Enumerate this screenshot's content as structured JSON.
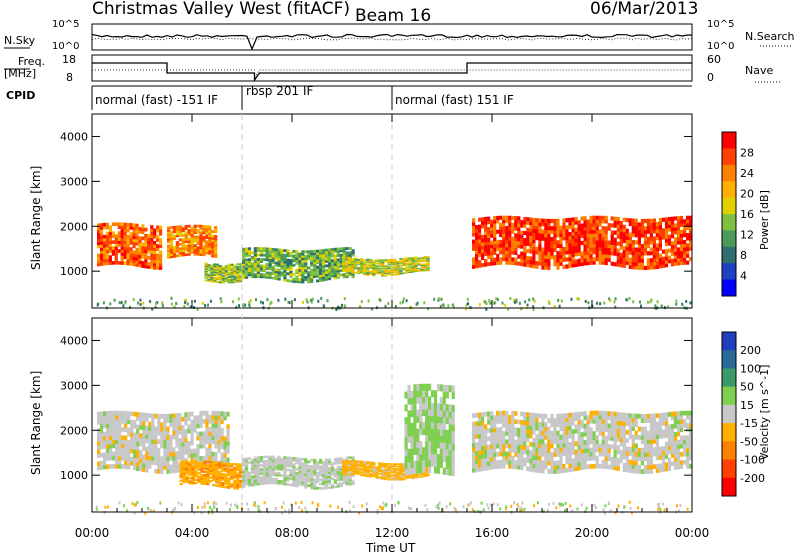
{
  "header": {
    "station": "Christmas Valley West (fitACF)",
    "beam": "Beam 16",
    "date": "06/Mar/2013"
  },
  "noise_panel": {
    "left_label": "N.Sky",
    "left_ticks": [
      "10^5",
      "10^0"
    ],
    "right_ticks": [
      "10^5",
      "10^0"
    ],
    "right_label": "N.Search"
  },
  "freq_panel": {
    "left_label_1": "Freq.",
    "left_label_2": "[MHz]",
    "left_ticks": [
      "18",
      "8"
    ],
    "right_ticks": [
      "60",
      "0"
    ],
    "right_label": "Nave"
  },
  "cpid_panel": {
    "label": "CPID",
    "segments": [
      {
        "text": "normal (fast) -151 IF",
        "start_hour": 0.0,
        "end_hour": 6.0
      },
      {
        "text": "rbsp 201 IF",
        "start_hour": 6.0,
        "end_hour": 12.0
      },
      {
        "text": "normal (fast) 151 IF",
        "start_hour": 12.0,
        "end_hour": 24.0
      }
    ]
  },
  "power_panel": {
    "ylabel": "Slant Range [km]",
    "colorbar_label": "Power [dB]",
    "colorbar_ticks": [
      "28",
      "24",
      "20",
      "16",
      "12",
      "8",
      "4"
    ],
    "colorbar_colors": [
      "#ff0000",
      "#ff4000",
      "#ff8000",
      "#ffb000",
      "#e0d000",
      "#7fc040",
      "#4a9a5a",
      "#2f6f6f",
      "#1f40c0",
      "#0000ff"
    ]
  },
  "velocity_panel": {
    "ylabel": "Slant Range [km]",
    "colorbar_label": "Velocity [m s^-1]",
    "colorbar_ticks": [
      "200",
      "100",
      "50",
      "15",
      "-15",
      "-50",
      "-100",
      "-200"
    ],
    "colorbar_colors": [
      "#1f3fbf",
      "#2a6a9a",
      "#3a9a6a",
      "#7fd050",
      "#c8c8c8",
      "#ffb000",
      "#ff8000",
      "#ff4000",
      "#ff0000"
    ]
  },
  "xaxis": {
    "label": "Time UT",
    "ticks": [
      "00:00",
      "04:00",
      "08:00",
      "12:00",
      "16:00",
      "20:00",
      "00:00"
    ]
  },
  "chart_data": {
    "type": "heatmap",
    "title": "Christmas Valley West (fitACF)",
    "x_range_hours": [
      0,
      24
    ],
    "y_range_km": [
      180,
      4500
    ],
    "y_ticks_km": [
      1000,
      2000,
      3000,
      4000
    ],
    "xlabel": "Time UT",
    "ylabel": "Slant Range [km]",
    "panels": [
      {
        "name": "Power",
        "units": "dB",
        "range": [
          0,
          30
        ],
        "echo_regions": [
          {
            "t0": 0.2,
            "t1": 2.8,
            "r0": 1100,
            "r1": 2050,
            "value": 24
          },
          {
            "t0": 3.0,
            "t1": 5.0,
            "r0": 1300,
            "r1": 2000,
            "value": 22
          },
          {
            "t0": 4.5,
            "t1": 6.0,
            "r0": 800,
            "r1": 1200,
            "value": 14
          },
          {
            "t0": 6.0,
            "t1": 10.5,
            "r0": 800,
            "r1": 1500,
            "value": 12
          },
          {
            "t0": 10.0,
            "t1": 13.5,
            "r0": 950,
            "r1": 1300,
            "value": 16
          },
          {
            "t0": 15.2,
            "t1": 24.0,
            "r0": 1100,
            "r1": 2200,
            "value": 26
          }
        ]
      },
      {
        "name": "Velocity",
        "units": "m s^-1",
        "range": [
          -200,
          200
        ],
        "echo_regions": [
          {
            "t0": 0.2,
            "t1": 5.5,
            "r0": 1100,
            "r1": 2400,
            "value": 0
          },
          {
            "t0": 3.5,
            "t1": 6.0,
            "r0": 750,
            "r1": 1300,
            "value": -40
          },
          {
            "t0": 6.0,
            "t1": 10.5,
            "r0": 750,
            "r1": 1400,
            "value": 5
          },
          {
            "t0": 10.0,
            "t1": 13.5,
            "r0": 950,
            "r1": 1300,
            "value": -30
          },
          {
            "t0": 12.5,
            "t1": 14.5,
            "r0": 1000,
            "r1": 3000,
            "value": 20
          },
          {
            "t0": 15.2,
            "t1": 24.0,
            "r0": 1100,
            "r1": 2400,
            "value": 0
          }
        ]
      }
    ]
  }
}
